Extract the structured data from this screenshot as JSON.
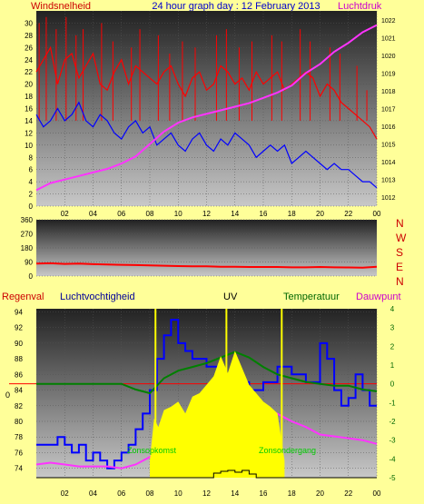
{
  "title": "24 hour graph day : 12 February 2013",
  "colors": {
    "background": "#ffff99",
    "wind": "#ff0000",
    "gust": "#ff0000",
    "pressure": "#ff33ff",
    "humidity": "#0000ff",
    "temperature": "#008000",
    "dewpoint": "#ff33ff",
    "uv": "#ffff00",
    "sun": "#ffff00",
    "direction": "#ff0000",
    "zero_line": "#ff0000",
    "rain": "#000000"
  },
  "x_ticks": [
    "02",
    "04",
    "06",
    "08",
    "10",
    "12",
    "14",
    "16",
    "18",
    "20",
    "22",
    "00"
  ],
  "chart_data": [
    {
      "type": "line",
      "left_label": "Windsnelheid",
      "right_label": "Luchtdruk",
      "y_left_ticks": [
        "0",
        "2",
        "4",
        "6",
        "8",
        "10",
        "12",
        "14",
        "16",
        "18",
        "20",
        "22",
        "24",
        "26",
        "28",
        "30"
      ],
      "y_left_range": [
        0,
        32
      ],
      "y_right_ticks": [
        "1012",
        "1013",
        "1014",
        "1015",
        "1016",
        "1017",
        "1018",
        "1019",
        "1020",
        "1021",
        "1022"
      ],
      "y_right_range": [
        1011.5,
        1022.5
      ],
      "x_range": [
        0,
        24
      ],
      "series": [
        {
          "name": "Windsnelheid",
          "axis": "left",
          "x": [
            0,
            0.5,
            1,
            1.5,
            2,
            2.5,
            3,
            3.5,
            4,
            4.5,
            5,
            5.5,
            6,
            6.5,
            7,
            7.5,
            8,
            8.5,
            9,
            9.5,
            10,
            10.5,
            11,
            11.5,
            12,
            12.5,
            13,
            13.5,
            14,
            14.5,
            15,
            15.5,
            16,
            16.5,
            17,
            17.5,
            18,
            18.5,
            19,
            19.5,
            20,
            20.5,
            21,
            21.5,
            22,
            22.5,
            23,
            23.5,
            24
          ],
          "values": [
            22,
            24,
            26,
            20,
            24,
            25,
            21,
            23,
            25,
            20,
            19,
            22,
            24,
            20,
            23,
            22,
            21,
            20,
            22,
            23,
            20,
            18,
            21,
            22,
            19,
            20,
            23,
            22,
            20,
            21,
            19,
            22,
            20,
            21,
            22,
            19,
            20,
            21,
            22,
            21,
            18,
            20,
            19,
            17,
            16,
            15,
            14,
            13,
            11
          ]
        },
        {
          "name": "Vlaag",
          "axis": "left",
          "x": [
            0.2,
            0.7,
            1.4,
            2.1,
            2.8,
            3.3,
            4.6,
            5.4,
            6.7,
            7.3,
            8.6,
            9.4,
            10.3,
            11.2,
            12.7,
            13.4,
            14.3,
            15.2,
            16.6,
            17.3,
            18.6,
            19.3,
            20.7,
            21.4,
            22.6,
            23.3
          ],
          "values": [
            30,
            31,
            29,
            31,
            28,
            29,
            30,
            27,
            26,
            29,
            28,
            25,
            27,
            26,
            28,
            29,
            26,
            27,
            28,
            27,
            29,
            27,
            26,
            25,
            23,
            19
          ]
        },
        {
          "name": "Luchtvochtigheid",
          "axis": "left",
          "x": [
            0,
            0.5,
            1,
            1.5,
            2,
            2.5,
            3,
            3.5,
            4,
            4.5,
            5,
            5.5,
            6,
            6.5,
            7,
            7.5,
            8,
            8.5,
            9,
            9.5,
            10,
            10.5,
            11,
            11.5,
            12,
            12.5,
            13,
            13.5,
            14,
            14.5,
            15,
            15.5,
            16,
            16.5,
            17,
            17.5,
            18,
            18.5,
            19,
            19.5,
            20,
            20.5,
            21,
            21.5,
            22,
            22.5,
            23,
            23.5,
            24
          ],
          "values": [
            15,
            13,
            14,
            16,
            14,
            15,
            17,
            14,
            13,
            15,
            14,
            12,
            11,
            13,
            14,
            12,
            13,
            10,
            11,
            12,
            10,
            9,
            11,
            12,
            10,
            9,
            11,
            10,
            12,
            11,
            10,
            8,
            9,
            10,
            9,
            10,
            7,
            8,
            9,
            8,
            7,
            6,
            7,
            6,
            6,
            5,
            4,
            4,
            3
          ]
        },
        {
          "name": "Luchtdruk",
          "axis": "right",
          "x": [
            0,
            1,
            2,
            3,
            4,
            5,
            6,
            7,
            8,
            9,
            10,
            11,
            12,
            13,
            14,
            15,
            16,
            17,
            18,
            19,
            20,
            21,
            22,
            23,
            24
          ],
          "values": [
            1012.4,
            1012.8,
            1013.0,
            1013.2,
            1013.4,
            1013.6,
            1013.9,
            1014.3,
            1015.0,
            1015.7,
            1016.2,
            1016.5,
            1016.7,
            1016.9,
            1017.1,
            1017.3,
            1017.6,
            1017.9,
            1018.3,
            1019.0,
            1019.5,
            1020.2,
            1020.7,
            1021.3,
            1021.7
          ]
        }
      ]
    },
    {
      "type": "line",
      "labels": [
        "N",
        "W",
        "S",
        "E",
        "N"
      ],
      "y_ticks": [
        "0",
        "90",
        "180",
        "270",
        "360"
      ],
      "y_range": [
        0,
        360
      ],
      "x_range": [
        0,
        24
      ],
      "series": [
        {
          "name": "Windrichting",
          "x": [
            0,
            1,
            2,
            3,
            4,
            5,
            6,
            7,
            8,
            9,
            10,
            11,
            12,
            13,
            14,
            15,
            16,
            17,
            18,
            19,
            20,
            21,
            22,
            23,
            24
          ],
          "values": [
            80,
            82,
            78,
            80,
            76,
            74,
            72,
            70,
            68,
            66,
            64,
            62,
            62,
            60,
            60,
            58,
            58,
            58,
            56,
            56,
            58,
            56,
            55,
            54,
            60
          ]
        }
      ]
    },
    {
      "type": "line",
      "labels": {
        "rain": "Regenval",
        "humidity": "Luchtvochtigheid",
        "uv": "UV",
        "temperature": "Temperatuur",
        "dewpoint": "Dauwpunt"
      },
      "annotations": [
        "Zonsopkomst",
        "Zonsondergang"
      ],
      "left_zero_label": "0",
      "y_left_ticks": [
        "74",
        "76",
        "78",
        "80",
        "82",
        "84",
        "86",
        "88",
        "90",
        "92",
        "94"
      ],
      "y_left_range": [
        72.8,
        94.4
      ],
      "y_right_ticks": [
        "-5",
        "-4",
        "-3",
        "-2",
        "-1",
        "0",
        "1",
        "2",
        "3",
        "4"
      ],
      "y_right_range": [
        -5,
        4
      ],
      "x_range": [
        0,
        24
      ],
      "uv_range": [
        0,
        1
      ],
      "series": [
        {
          "name": "Luchtvochtigheid",
          "axis": "left",
          "step": true,
          "x": [
            0,
            1.5,
            2,
            2.5,
            3,
            3.5,
            4,
            4.5,
            5,
            5.5,
            6,
            6.5,
            7,
            7.5,
            8,
            8.5,
            9,
            9.5,
            10,
            10.5,
            11,
            12,
            13,
            14,
            15,
            16,
            17,
            18,
            19,
            20,
            20.5,
            21,
            21.5,
            22,
            22.5,
            23,
            23.5,
            24
          ],
          "values": [
            77,
            78,
            77,
            76,
            77,
            75,
            76,
            75,
            74,
            75,
            76,
            77,
            79,
            81,
            84,
            88,
            91,
            93,
            90,
            89,
            88,
            87,
            86,
            85,
            84,
            85,
            87,
            86,
            85,
            90,
            88,
            84,
            82,
            83,
            86,
            84,
            82,
            82
          ]
        },
        {
          "name": "Temperatuur",
          "axis": "right",
          "x": [
            0,
            1,
            2,
            3,
            4,
            5,
            6,
            7,
            8,
            9,
            10,
            11,
            12,
            13,
            14,
            15,
            16,
            17,
            18,
            19,
            20,
            21,
            22,
            23,
            24
          ],
          "values": [
            0,
            0,
            0,
            0,
            0,
            0,
            0,
            -0.3,
            -0.5,
            0.3,
            0.7,
            0.9,
            1.1,
            1.4,
            1.7,
            1.4,
            0.9,
            0.5,
            0.3,
            0.1,
            0.0,
            -0.1,
            -0.1,
            -0.3,
            -0.4
          ]
        },
        {
          "name": "Dauwpunt",
          "axis": "right",
          "x": [
            0,
            1,
            2,
            3,
            4,
            5,
            6,
            7,
            8,
            9,
            10,
            11,
            12,
            13,
            14,
            15,
            16,
            17,
            18,
            19,
            20,
            21,
            22,
            23,
            24
          ],
          "values": [
            -4.3,
            -4.2,
            -4.3,
            -4.4,
            -4.4,
            -4.4,
            -4.5,
            -4.3,
            -3.9,
            -3.3,
            -2.7,
            -2.2,
            -1.8,
            -1.3,
            -0.9,
            -1.0,
            -1.3,
            -1.6,
            -2.0,
            -2.3,
            -2.7,
            -2.8,
            -2.9,
            -3.0,
            -3.2
          ]
        },
        {
          "name": "UV",
          "axis": "uv",
          "fill": true,
          "x": [
            8,
            8.3,
            8.6,
            9,
            9.5,
            10,
            10.5,
            11,
            11.5,
            12,
            12.5,
            13,
            13.5,
            14,
            14.5,
            15,
            15.5,
            16,
            16.5,
            17,
            17.5
          ],
          "values": [
            0.1,
            0.35,
            0.3,
            0.4,
            0.42,
            0.45,
            0.38,
            0.48,
            0.5,
            0.55,
            0.6,
            0.72,
            0.62,
            0.75,
            0.65,
            0.55,
            0.5,
            0.45,
            0.42,
            0.38,
            0.1
          ]
        },
        {
          "name": "Zon",
          "axis": "uv",
          "bar": true,
          "x": [
            8.4,
            13.4,
            17.3
          ],
          "values": [
            1,
            1,
            1
          ]
        },
        {
          "name": "Regenval",
          "axis": "rain",
          "step": true,
          "x": [
            0,
            12,
            12.5,
            13,
            13.5,
            14,
            14.5,
            15,
            15.5,
            24
          ],
          "values": [
            0,
            0,
            0.05,
            0.07,
            0.08,
            0.06,
            0.08,
            0.04,
            0,
            0
          ]
        }
      ]
    }
  ]
}
